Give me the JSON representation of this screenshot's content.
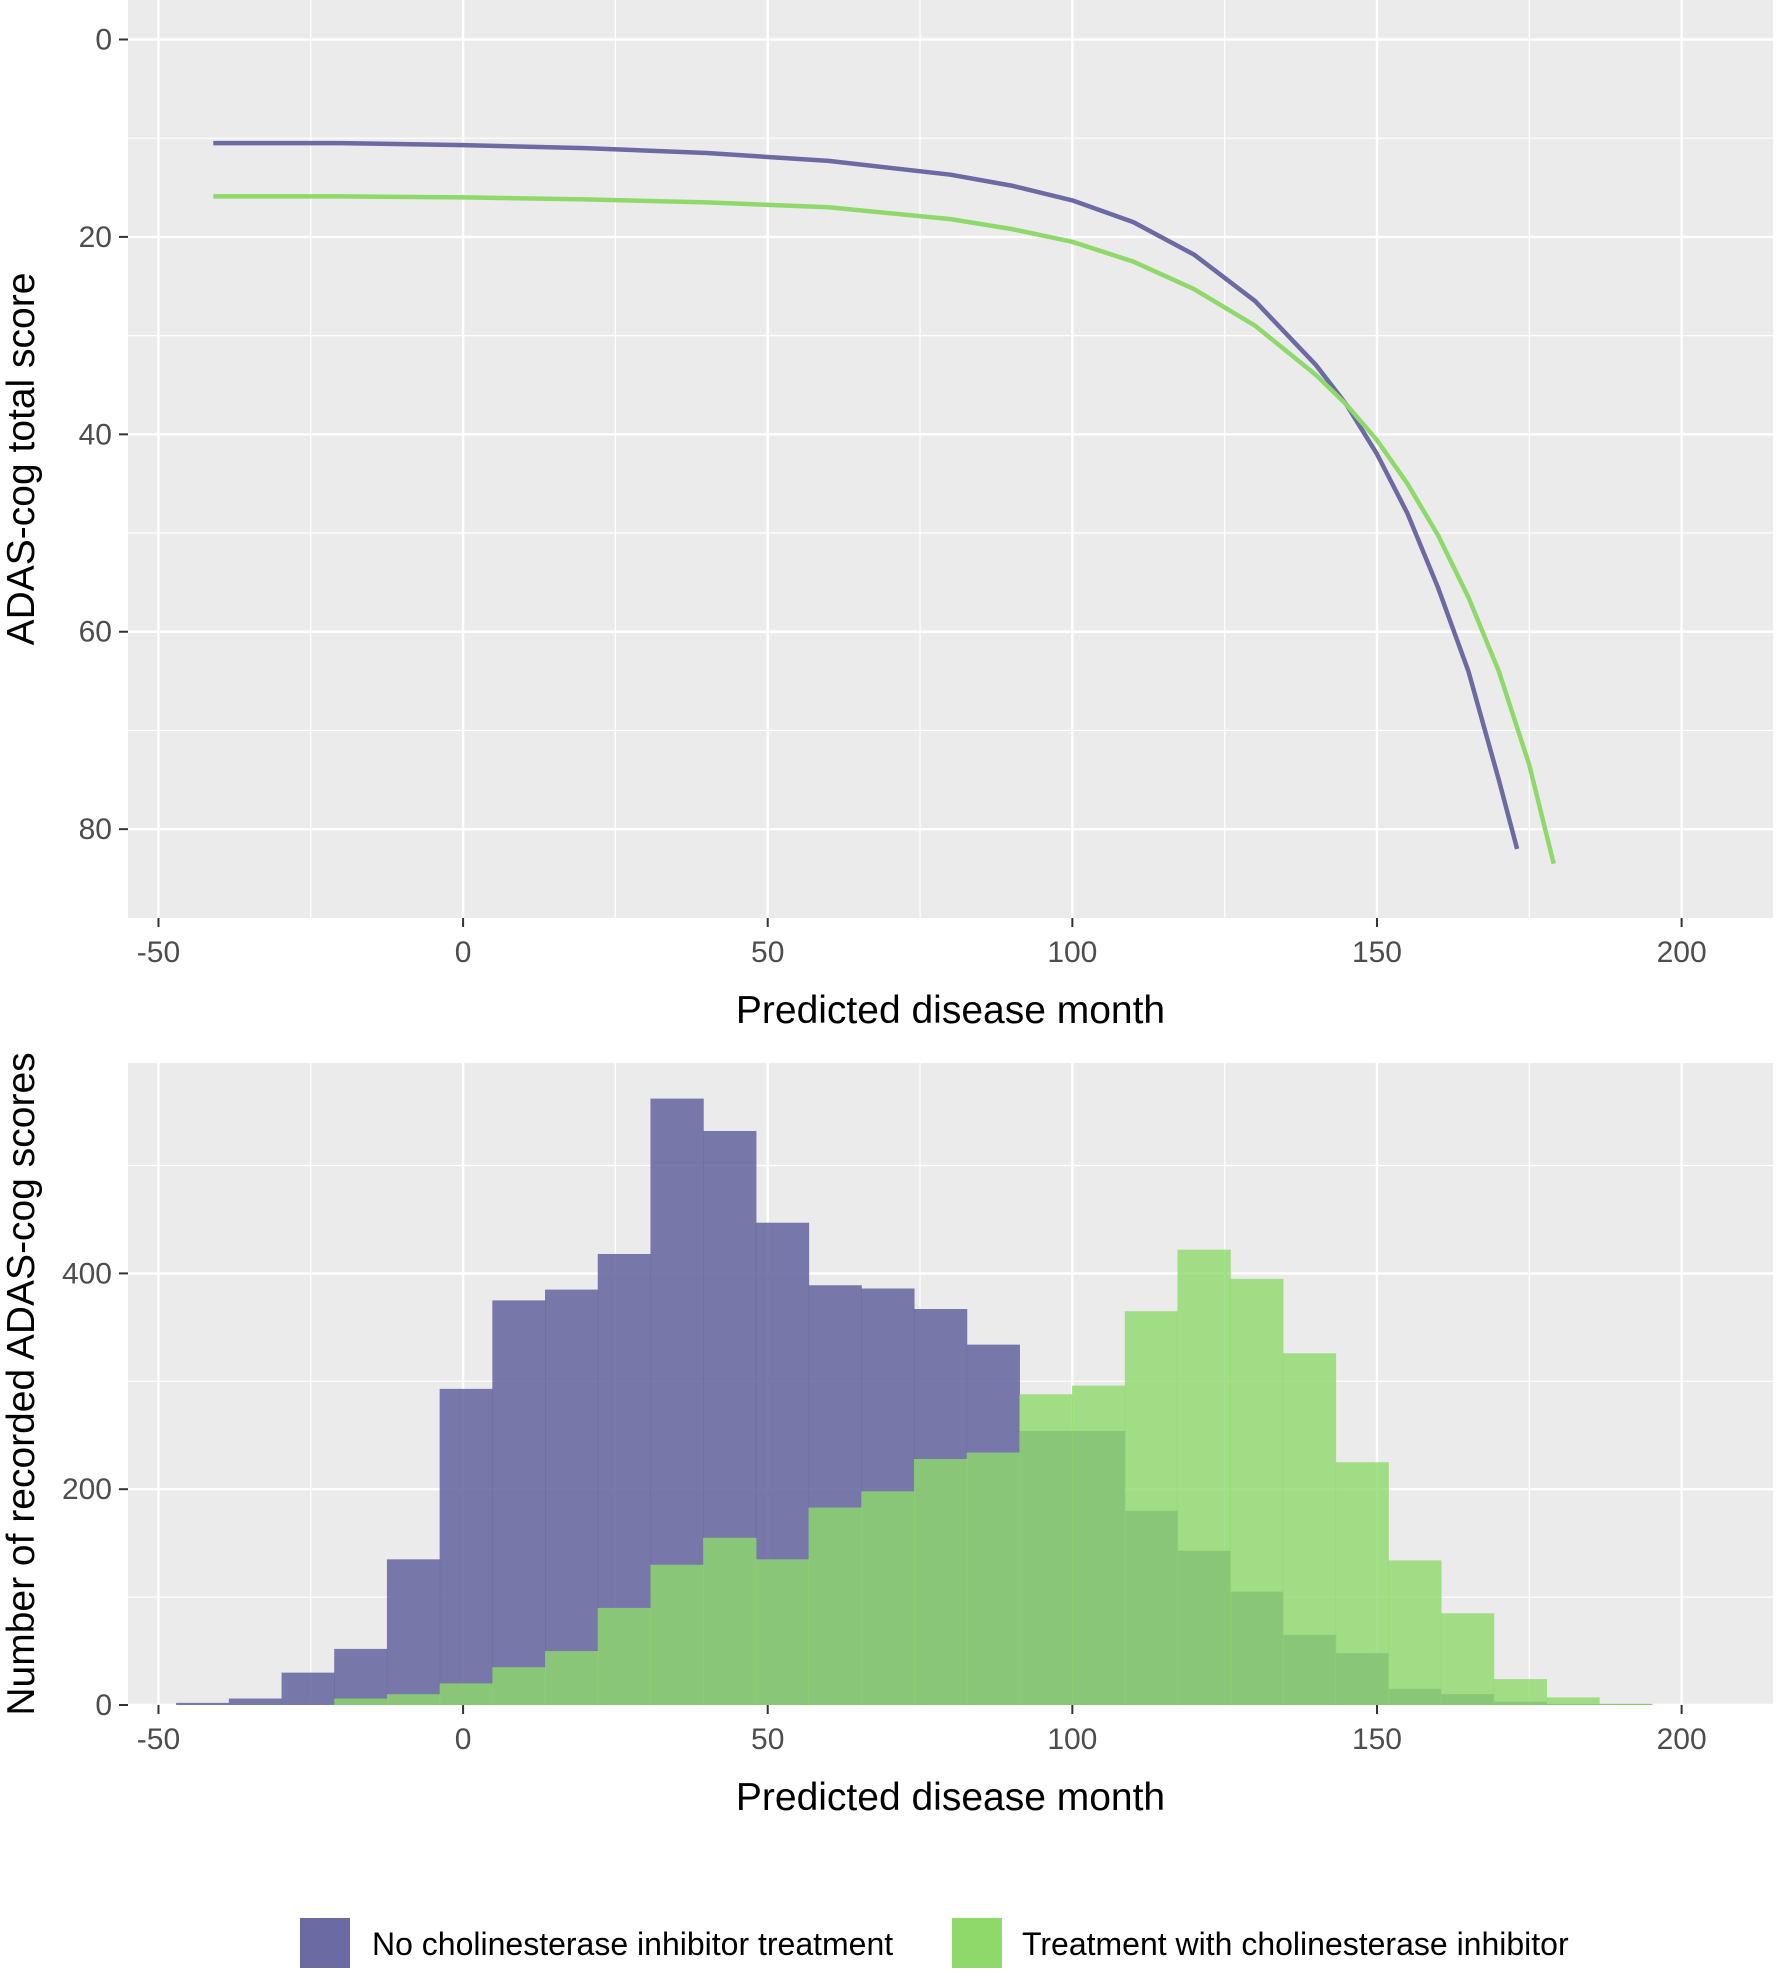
{
  "chart_data": [
    {
      "type": "line",
      "xlabel": "Predicted disease month",
      "ylabel": "ADAS-cog total score",
      "xlim": [
        -55,
        215
      ],
      "ylim": [
        89,
        -4
      ],
      "y_reversed": true,
      "x_ticks": [
        -50,
        0,
        50,
        100,
        150,
        200
      ],
      "y_ticks": [
        0,
        20,
        40,
        60,
        80
      ],
      "grid": true,
      "series": [
        {
          "name": "No cholinesterase inhibitor treatment",
          "color": "#6b6aa2",
          "points": [
            [
              -41,
              10.5
            ],
            [
              -20,
              10.5
            ],
            [
              0,
              10.7
            ],
            [
              20,
              11.0
            ],
            [
              40,
              11.5
            ],
            [
              60,
              12.3
            ],
            [
              80,
              13.7
            ],
            [
              90,
              14.8
            ],
            [
              100,
              16.3
            ],
            [
              110,
              18.5
            ],
            [
              120,
              21.8
            ],
            [
              130,
              26.5
            ],
            [
              140,
              33.0
            ],
            [
              145,
              37.0
            ],
            [
              150,
              42.0
            ],
            [
              155,
              48.0
            ],
            [
              160,
              55.5
            ],
            [
              165,
              64.0
            ],
            [
              170,
              75.0
            ],
            [
              173,
              82.0
            ]
          ]
        },
        {
          "name": "Treatment with cholinesterase inhibitor",
          "color": "#8fd96b",
          "points": [
            [
              -41,
              15.9
            ],
            [
              -20,
              15.9
            ],
            [
              0,
              16.0
            ],
            [
              20,
              16.2
            ],
            [
              40,
              16.5
            ],
            [
              60,
              17.0
            ],
            [
              80,
              18.2
            ],
            [
              90,
              19.2
            ],
            [
              100,
              20.5
            ],
            [
              110,
              22.5
            ],
            [
              120,
              25.3
            ],
            [
              130,
              29.0
            ],
            [
              140,
              34.0
            ],
            [
              145,
              37.0
            ],
            [
              150,
              40.6
            ],
            [
              155,
              45.0
            ],
            [
              160,
              50.2
            ],
            [
              165,
              56.5
            ],
            [
              170,
              64.0
            ],
            [
              175,
              73.5
            ],
            [
              179,
              83.5
            ]
          ]
        }
      ]
    },
    {
      "type": "histogram",
      "xlabel": "Predicted disease month",
      "ylabel": "Number of recorded ADAS-cog scores",
      "xlim": [
        -55,
        215
      ],
      "ylim": [
        0,
        595
      ],
      "x_ticks": [
        -50,
        0,
        50,
        100,
        150,
        200
      ],
      "y_ticks": [
        0,
        200,
        400
      ],
      "grid": true,
      "bins_start": -47.1,
      "bin_width": 8.65,
      "series": [
        {
          "name": "No cholinesterase inhibitor treatment",
          "color": "#6b6aa2",
          "values": [
            2,
            6,
            30,
            52,
            135,
            293,
            375,
            385,
            418,
            562,
            532,
            447,
            389,
            386,
            367,
            334,
            254,
            254,
            180,
            143,
            105,
            65,
            48,
            15,
            10,
            3,
            1,
            1
          ]
        },
        {
          "name": "Treatment with cholinesterase inhibitor",
          "color": "#8fd96b",
          "values": [
            0,
            0,
            0,
            6,
            10,
            20,
            35,
            50,
            90,
            130,
            155,
            135,
            183,
            198,
            228,
            234,
            288,
            296,
            365,
            422,
            395,
            326,
            225,
            134,
            85,
            24,
            7,
            1
          ]
        }
      ]
    }
  ],
  "legend": {
    "position": "bottom",
    "items": [
      {
        "label": "No cholinesterase inhibitor treatment",
        "color": "#6b6aa2"
      },
      {
        "label": "Treatment with cholinesterase inhibitor",
        "color": "#8fd96b"
      }
    ]
  },
  "style": {
    "panel_bg": "#ebebeb",
    "grid_major": "#ffffff"
  }
}
